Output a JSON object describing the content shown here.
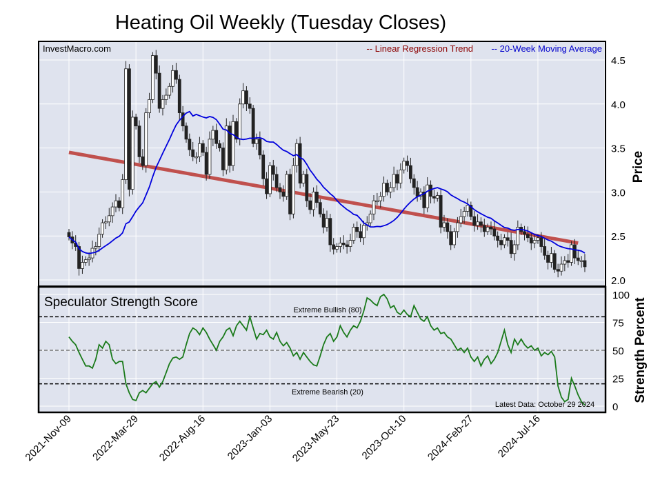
{
  "chart_data": {
    "type": "candlestick",
    "title": "Heating Oil Weekly (Tuesday Closes)",
    "watermark": "InvestMacro.com",
    "legend": [
      {
        "label": "-- Linear Regression Trend",
        "color": "#8b0000"
      },
      {
        "label": "-- 20-Week Moving Average",
        "color": "#0000cc"
      }
    ],
    "legend_placement": "top-right",
    "price_axis": {
      "label": "Price",
      "ticks": [
        "4.5",
        "4.0",
        "3.5",
        "3.0",
        "2.5",
        "2.0"
      ],
      "ylim": [
        2.0,
        4.5
      ]
    },
    "strength_axis": {
      "label": "Strength Percent",
      "ticks": [
        "100",
        "75",
        "50",
        "25",
        "0"
      ],
      "ylim": [
        0,
        100
      ]
    },
    "x_ticks": [
      {
        "week": 0,
        "label": "2021-Nov-09"
      },
      {
        "week": 20,
        "label": "2022-Mar-29"
      },
      {
        "week": 40,
        "label": "2022-Aug-16"
      },
      {
        "week": 60,
        "label": "2023-Jan-03"
      },
      {
        "week": 80,
        "label": "2023-May-23"
      },
      {
        "week": 100,
        "label": "2023-Oct-10"
      },
      {
        "week": 120,
        "label": "2024-Feb-27"
      },
      {
        "week": 140,
        "label": "2024-Jul-16"
      }
    ],
    "closes": [
      2.49,
      2.42,
      2.38,
      2.13,
      2.2,
      2.23,
      2.25,
      2.36,
      2.38,
      2.52,
      2.65,
      2.66,
      2.73,
      2.83,
      2.9,
      2.82,
      3.14,
      4.4,
      3.03,
      3.85,
      3.75,
      3.4,
      3.3,
      3.9,
      4.05,
      4.55,
      4.35,
      3.95,
      4.05,
      4.1,
      4.2,
      4.38,
      4.28,
      3.9,
      3.75,
      3.6,
      3.48,
      3.4,
      3.4,
      3.55,
      3.45,
      3.2,
      3.6,
      3.7,
      3.55,
      3.5,
      3.25,
      3.75,
      3.3,
      3.8,
      3.6,
      4.0,
      4.15,
      4.0,
      3.95,
      3.55,
      3.6,
      3.42,
      3.15,
      2.98,
      3.3,
      3.2,
      3.05,
      3.0,
      2.95,
      3.2,
      2.75,
      3.3,
      3.55,
      3.1,
      3.2,
      2.9,
      2.8,
      3.0,
      2.88,
      2.75,
      2.6,
      2.7,
      2.4,
      2.35,
      2.38,
      2.42,
      2.4,
      2.38,
      2.45,
      2.6,
      2.55,
      2.48,
      2.62,
      2.65,
      2.75,
      2.9,
      2.9,
      2.95,
      3.1,
      3.0,
      3.05,
      3.2,
      3.1,
      3.25,
      3.35,
      3.3,
      3.15,
      3.05,
      2.95,
      3.0,
      2.82,
      3.08,
      2.95,
      2.93,
      2.96,
      2.6,
      2.65,
      2.55,
      2.4,
      2.55,
      2.65,
      2.72,
      2.78,
      2.85,
      2.72,
      2.62,
      2.66,
      2.62,
      2.55,
      2.6,
      2.58,
      2.5,
      2.45,
      2.4,
      2.48,
      2.45,
      2.3,
      2.4,
      2.6,
      2.55,
      2.52,
      2.48,
      2.42,
      2.45,
      2.48,
      2.38,
      2.28,
      2.2,
      2.3,
      2.12,
      2.1,
      2.18,
      2.22,
      2.2,
      2.4,
      2.25,
      2.22,
      2.22,
      2.15
    ],
    "moving_average_window": 20,
    "regression": {
      "start": 3.45,
      "end": 2.42
    },
    "strength_panel": {
      "title": "Speculator Strength Score",
      "bullish_label": "Extreme Bullish (80)",
      "bullish_level": 80,
      "bearish_label": "Extreme Bearish (20)",
      "bearish_level": 20,
      "mid_level": 50,
      "latest_label": "Latest Data: October 29 2024",
      "values": [
        62,
        58,
        55,
        48,
        42,
        36,
        36,
        34,
        42,
        55,
        52,
        58,
        55,
        42,
        38,
        40,
        40,
        20,
        12,
        6,
        5,
        12,
        14,
        12,
        16,
        20,
        22,
        17,
        22,
        30,
        38,
        43,
        44,
        42,
        44,
        55,
        65,
        70,
        68,
        64,
        70,
        66,
        60,
        55,
        50,
        58,
        62,
        68,
        70,
        63,
        72,
        76,
        72,
        68,
        80,
        70,
        60,
        65,
        64,
        68,
        62,
        60,
        66,
        58,
        54,
        57,
        52,
        45,
        48,
        42,
        48,
        44,
        40,
        37,
        36,
        45,
        55,
        62,
        65,
        58,
        62,
        72,
        66,
        62,
        68,
        72,
        70,
        76,
        85,
        97,
        95,
        92,
        90,
        98,
        100,
        96,
        88,
        90,
        84,
        82,
        86,
        82,
        80,
        90,
        84,
        78,
        76,
        80,
        72,
        68,
        70,
        65,
        66,
        62,
        60,
        55,
        50,
        52,
        48,
        52,
        44,
        40,
        44,
        36,
        42,
        45,
        38,
        42,
        48,
        58,
        68,
        55,
        48,
        60,
        55,
        60,
        55,
        52,
        54,
        50,
        52,
        45,
        48,
        46,
        49,
        44,
        18,
        8,
        4,
        6,
        25,
        18,
        10,
        4,
        1
      ]
    },
    "colors": {
      "panel_bg": "#dfe3ee",
      "grid": "#ffffff",
      "ma": "#0000dd",
      "regression": "#c0504d",
      "strength": "#1a7a1a",
      "candle_down": "#222222",
      "candle_up": "#ffffff"
    }
  }
}
